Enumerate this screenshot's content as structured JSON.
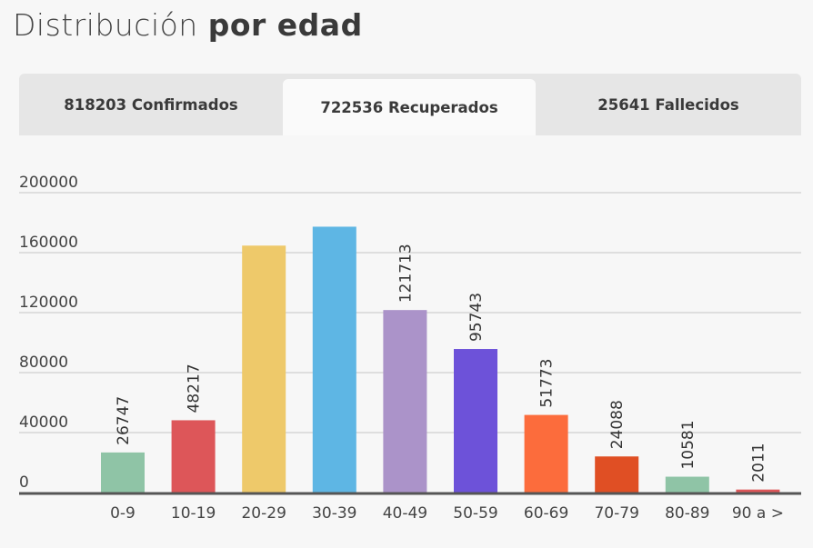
{
  "header": {
    "title_light": "Distribución",
    "title_bold": "por edad"
  },
  "tabs": [
    {
      "label": "818203 Confirmados",
      "active": false
    },
    {
      "label": "722536 Recuperados",
      "active": true
    },
    {
      "label": "25641 Fallecidos",
      "active": false
    }
  ],
  "chart_data": {
    "type": "bar",
    "title": "",
    "xlabel": "",
    "ylabel": "",
    "ylim": [
      0,
      200000
    ],
    "yticks": [
      0,
      40000,
      80000,
      120000,
      160000,
      200000
    ],
    "grid": true,
    "categories": [
      "0-9",
      "10-19",
      "20-29",
      "30-39",
      "40-49",
      "50-59",
      "60-69",
      "70-79",
      "80-89",
      "90 a >"
    ],
    "values": [
      26747,
      48217,
      164700,
      177300,
      121713,
      95743,
      51773,
      24088,
      10581,
      2011
    ],
    "data_labels": [
      "26747",
      "48217",
      "",
      "",
      "121713",
      "95743",
      "51773",
      "24088",
      "10581",
      "2011"
    ],
    "colors": [
      "#8fc4a6",
      "#dd5659",
      "#eec96a",
      "#5eb6e4",
      "#ab93c9",
      "#6d52d9",
      "#fc6c3c",
      "#e04f24",
      "#8fc4a6",
      "#dd5659"
    ]
  }
}
